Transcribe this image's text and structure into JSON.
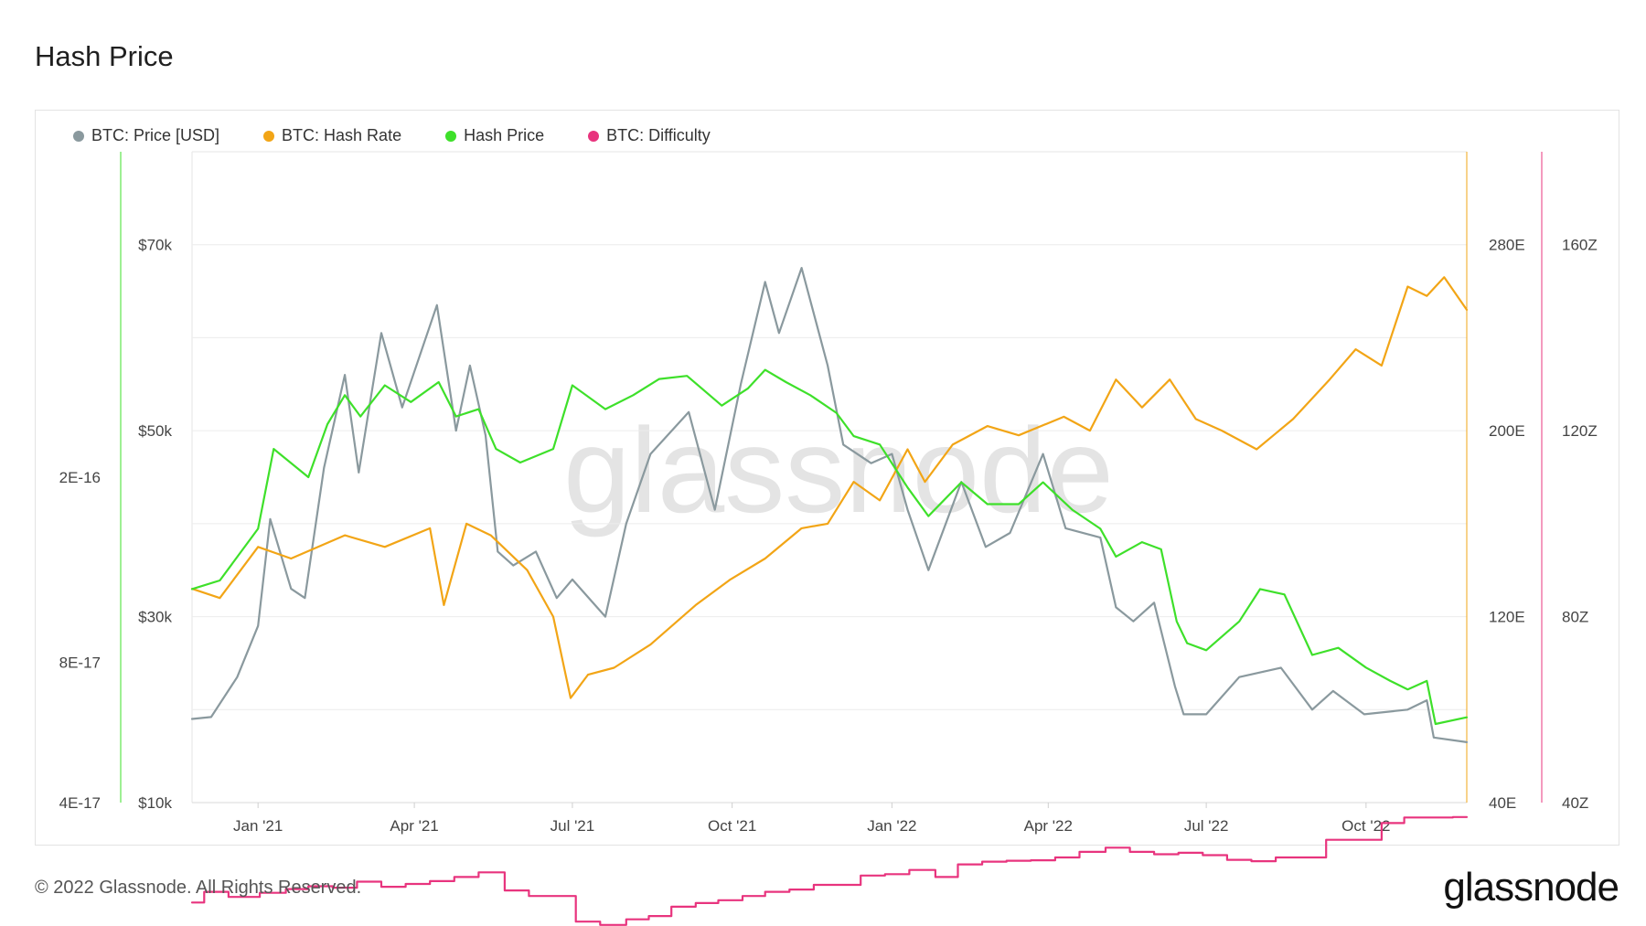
{
  "page_title": "Hash Price",
  "footer": {
    "copyright": "© 2022 Glassnode. All Rights Reserved.",
    "brand": "glassnode"
  },
  "watermark": "glassnode",
  "colors": {
    "price": "#8a999e",
    "hashrate": "#f2a516",
    "hashprice": "#3ee02a",
    "difficulty": "#e8347e"
  },
  "chart_data": {
    "type": "line",
    "title": "Hash Price",
    "legend_position": "top-left",
    "grid": true,
    "x_ticks": [
      "Jan '21",
      "Apr '21",
      "Jul '21",
      "Oct '21",
      "Jan '22",
      "Apr '22",
      "Jul '22",
      "Oct '22"
    ],
    "x_range": [
      "2020-11-24",
      "2022-11-28"
    ],
    "axes": {
      "hashprice": {
        "ticks": [
          "4E-17",
          "8E-17",
          "2E-16"
        ],
        "scale": "log",
        "range": [
          4e-17,
          1e-15
        ]
      },
      "price": {
        "ticks": [
          "$10k",
          "$30k",
          "$50k",
          "$70k"
        ],
        "range": [
          10000,
          80000
        ]
      },
      "hashrate": {
        "ticks": [
          "40E",
          "120E",
          "200E",
          "280E"
        ],
        "range": [
          40,
          320
        ]
      },
      "difficulty": {
        "ticks": [
          "40Z",
          "80Z",
          "120Z",
          "160Z"
        ],
        "range": [
          40,
          180
        ]
      }
    },
    "series": [
      {
        "name": "BTC: Price [USD]",
        "axis": "price",
        "points": [
          [
            "2020-11-24",
            19000
          ],
          [
            "2020-12-05",
            19200
          ],
          [
            "2020-12-20",
            23500
          ],
          [
            "2021-01-01",
            29000
          ],
          [
            "2021-01-08",
            40500
          ],
          [
            "2021-01-20",
            33000
          ],
          [
            "2021-01-28",
            32000
          ],
          [
            "2021-02-08",
            46000
          ],
          [
            "2021-02-20",
            56000
          ],
          [
            "2021-02-28",
            45500
          ],
          [
            "2021-03-13",
            60500
          ],
          [
            "2021-03-25",
            52500
          ],
          [
            "2021-04-14",
            63500
          ],
          [
            "2021-04-25",
            50000
          ],
          [
            "2021-05-03",
            57000
          ],
          [
            "2021-05-12",
            49500
          ],
          [
            "2021-05-19",
            37000
          ],
          [
            "2021-05-28",
            35500
          ],
          [
            "2021-06-10",
            37000
          ],
          [
            "2021-06-22",
            32000
          ],
          [
            "2021-07-01",
            34000
          ],
          [
            "2021-07-20",
            30000
          ],
          [
            "2021-08-01",
            40000
          ],
          [
            "2021-08-15",
            47500
          ],
          [
            "2021-09-06",
            52000
          ],
          [
            "2021-09-21",
            41500
          ],
          [
            "2021-10-06",
            55000
          ],
          [
            "2021-10-20",
            66000
          ],
          [
            "2021-10-28",
            60500
          ],
          [
            "2021-11-10",
            67500
          ],
          [
            "2021-11-25",
            57000
          ],
          [
            "2021-12-04",
            48500
          ],
          [
            "2021-12-20",
            46500
          ],
          [
            "2022-01-01",
            47500
          ],
          [
            "2022-01-10",
            41500
          ],
          [
            "2022-01-22",
            35000
          ],
          [
            "2022-02-10",
            44500
          ],
          [
            "2022-02-24",
            37500
          ],
          [
            "2022-03-10",
            39000
          ],
          [
            "2022-03-29",
            47500
          ],
          [
            "2022-04-11",
            39500
          ],
          [
            "2022-05-01",
            38500
          ],
          [
            "2022-05-10",
            31000
          ],
          [
            "2022-05-20",
            29500
          ],
          [
            "2022-06-01",
            31500
          ],
          [
            "2022-06-13",
            22500
          ],
          [
            "2022-06-18",
            19500
          ],
          [
            "2022-07-01",
            19500
          ],
          [
            "2022-07-20",
            23500
          ],
          [
            "2022-08-13",
            24500
          ],
          [
            "2022-08-31",
            20000
          ],
          [
            "2022-09-12",
            22000
          ],
          [
            "2022-09-30",
            19500
          ],
          [
            "2022-10-25",
            20000
          ],
          [
            "2022-11-05",
            21000
          ],
          [
            "2022-11-09",
            17000
          ],
          [
            "2022-11-28",
            16500
          ]
        ]
      },
      {
        "name": "BTC: Hash Rate",
        "axis": "hashrate",
        "points": [
          [
            "2020-11-24",
            132
          ],
          [
            "2020-12-10",
            128
          ],
          [
            "2021-01-01",
            150
          ],
          [
            "2021-01-20",
            145
          ],
          [
            "2021-02-20",
            155
          ],
          [
            "2021-03-15",
            150
          ],
          [
            "2021-04-10",
            158
          ],
          [
            "2021-04-18",
            125
          ],
          [
            "2021-05-01",
            160
          ],
          [
            "2021-05-15",
            155
          ],
          [
            "2021-06-05",
            140
          ],
          [
            "2021-06-20",
            120
          ],
          [
            "2021-06-30",
            85
          ],
          [
            "2021-07-10",
            95
          ],
          [
            "2021-07-25",
            98
          ],
          [
            "2021-08-15",
            108
          ],
          [
            "2021-09-10",
            125
          ],
          [
            "2021-09-30",
            136
          ],
          [
            "2021-10-20",
            145
          ],
          [
            "2021-11-10",
            158
          ],
          [
            "2021-11-25",
            160
          ],
          [
            "2021-12-10",
            178
          ],
          [
            "2021-12-25",
            170
          ],
          [
            "2022-01-10",
            192
          ],
          [
            "2022-01-20",
            178
          ],
          [
            "2022-02-05",
            194
          ],
          [
            "2022-02-25",
            202
          ],
          [
            "2022-03-15",
            198
          ],
          [
            "2022-04-10",
            206
          ],
          [
            "2022-04-25",
            200
          ],
          [
            "2022-05-10",
            222
          ],
          [
            "2022-05-25",
            210
          ],
          [
            "2022-06-10",
            222
          ],
          [
            "2022-06-25",
            205
          ],
          [
            "2022-07-10",
            200
          ],
          [
            "2022-07-30",
            192
          ],
          [
            "2022-08-20",
            205
          ],
          [
            "2022-09-10",
            222
          ],
          [
            "2022-09-25",
            235
          ],
          [
            "2022-10-10",
            228
          ],
          [
            "2022-10-25",
            262
          ],
          [
            "2022-11-05",
            258
          ],
          [
            "2022-11-15",
            266
          ],
          [
            "2022-11-28",
            252
          ]
        ]
      },
      {
        "name": "Hash Price",
        "axis": "hashprice",
        "points": [
          [
            "2020-11-24",
            1.15e-16
          ],
          [
            "2020-12-10",
            1.2e-16
          ],
          [
            "2021-01-01",
            1.55e-16
          ],
          [
            "2021-01-10",
            2.3e-16
          ],
          [
            "2021-01-30",
            2e-16
          ],
          [
            "2021-02-10",
            2.6e-16
          ],
          [
            "2021-02-20",
            3e-16
          ],
          [
            "2021-03-01",
            2.7e-16
          ],
          [
            "2021-03-15",
            3.15e-16
          ],
          [
            "2021-03-30",
            2.9e-16
          ],
          [
            "2021-04-15",
            3.2e-16
          ],
          [
            "2021-04-25",
            2.7e-16
          ],
          [
            "2021-05-08",
            2.8e-16
          ],
          [
            "2021-05-18",
            2.3e-16
          ],
          [
            "2021-06-01",
            2.15e-16
          ],
          [
            "2021-06-20",
            2.3e-16
          ],
          [
            "2021-07-01",
            3.15e-16
          ],
          [
            "2021-07-20",
            2.8e-16
          ],
          [
            "2021-08-05",
            3e-16
          ],
          [
            "2021-08-20",
            3.25e-16
          ],
          [
            "2021-09-05",
            3.3e-16
          ],
          [
            "2021-09-25",
            2.85e-16
          ],
          [
            "2021-10-10",
            3.1e-16
          ],
          [
            "2021-10-20",
            3.4e-16
          ],
          [
            "2021-11-01",
            3.2e-16
          ],
          [
            "2021-11-15",
            3e-16
          ],
          [
            "2021-11-30",
            2.75e-16
          ],
          [
            "2021-12-10",
            2.45e-16
          ],
          [
            "2021-12-25",
            2.35e-16
          ],
          [
            "2022-01-10",
            1.9e-16
          ],
          [
            "2022-01-22",
            1.65e-16
          ],
          [
            "2022-02-10",
            1.95e-16
          ],
          [
            "2022-02-25",
            1.75e-16
          ],
          [
            "2022-03-15",
            1.75e-16
          ],
          [
            "2022-03-29",
            1.95e-16
          ],
          [
            "2022-04-15",
            1.7e-16
          ],
          [
            "2022-05-01",
            1.55e-16
          ],
          [
            "2022-05-10",
            1.35e-16
          ],
          [
            "2022-05-25",
            1.45e-16
          ],
          [
            "2022-06-05",
            1.4e-16
          ],
          [
            "2022-06-14",
            9.8e-17
          ],
          [
            "2022-06-20",
            8.8e-17
          ],
          [
            "2022-07-01",
            8.5e-17
          ],
          [
            "2022-07-20",
            9.8e-17
          ],
          [
            "2022-08-01",
            1.15e-16
          ],
          [
            "2022-08-15",
            1.12e-16
          ],
          [
            "2022-08-31",
            8.3e-17
          ],
          [
            "2022-09-15",
            8.6e-17
          ],
          [
            "2022-10-01",
            7.8e-17
          ],
          [
            "2022-10-15",
            7.3e-17
          ],
          [
            "2022-10-25",
            7e-17
          ],
          [
            "2022-11-05",
            7.3e-17
          ],
          [
            "2022-11-10",
            5.9e-17
          ],
          [
            "2022-11-28",
            6.1e-17
          ]
        ]
      },
      {
        "name": "BTC: Difficulty",
        "axis": "difficulty",
        "step": true,
        "points": [
          [
            "2020-11-24",
            18.5
          ],
          [
            "2020-12-01",
            20.8
          ],
          [
            "2020-12-15",
            19.7
          ],
          [
            "2021-01-02",
            20.6
          ],
          [
            "2021-01-17",
            21.4
          ],
          [
            "2021-01-30",
            22.0
          ],
          [
            "2021-02-13",
            21.7
          ],
          [
            "2021-02-27",
            23.0
          ],
          [
            "2021-03-13",
            21.9
          ],
          [
            "2021-03-27",
            22.5
          ],
          [
            "2021-04-10",
            23.1
          ],
          [
            "2021-04-24",
            24.0
          ],
          [
            "2021-05-08",
            25.0
          ],
          [
            "2021-05-23",
            21.1
          ],
          [
            "2021-06-06",
            19.9
          ],
          [
            "2021-06-20",
            19.9
          ],
          [
            "2021-07-03",
            14.4
          ],
          [
            "2021-07-17",
            13.7
          ],
          [
            "2021-08-01",
            14.9
          ],
          [
            "2021-08-14",
            15.6
          ],
          [
            "2021-08-27",
            17.6
          ],
          [
            "2021-09-10",
            18.4
          ],
          [
            "2021-09-23",
            19.0
          ],
          [
            "2021-10-07",
            19.9
          ],
          [
            "2021-10-20",
            20.8
          ],
          [
            "2021-11-03",
            21.3
          ],
          [
            "2021-11-17",
            22.3
          ],
          [
            "2021-11-30",
            22.3
          ],
          [
            "2021-12-14",
            24.3
          ],
          [
            "2021-12-28",
            24.6
          ],
          [
            "2022-01-11",
            25.5
          ],
          [
            "2022-01-26",
            24.0
          ],
          [
            "2022-02-08",
            26.7
          ],
          [
            "2022-02-22",
            27.3
          ],
          [
            "2022-03-08",
            27.5
          ],
          [
            "2022-03-22",
            27.6
          ],
          [
            "2022-04-05",
            28.2
          ],
          [
            "2022-04-19",
            29.4
          ],
          [
            "2022-05-04",
            30.3
          ],
          [
            "2022-05-18",
            29.4
          ],
          [
            "2022-06-01",
            28.9
          ],
          [
            "2022-06-15",
            29.2
          ],
          [
            "2022-06-29",
            28.7
          ],
          [
            "2022-07-13",
            27.7
          ],
          [
            "2022-07-27",
            27.4
          ],
          [
            "2022-08-10",
            28.2
          ],
          [
            "2022-08-24",
            28.2
          ],
          [
            "2022-09-08",
            32.0
          ],
          [
            "2022-09-21",
            32.0
          ],
          [
            "2022-10-10",
            35.6
          ],
          [
            "2022-10-23",
            36.8
          ],
          [
            "2022-11-07",
            36.8
          ],
          [
            "2022-11-20",
            36.9
          ]
        ]
      }
    ]
  }
}
